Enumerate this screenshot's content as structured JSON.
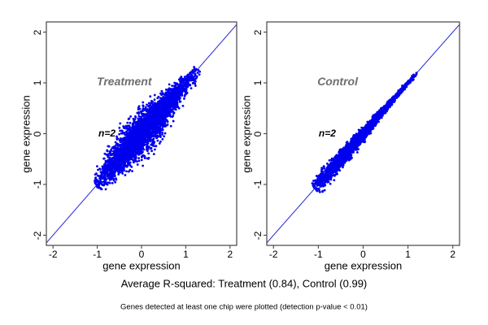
{
  "figure": {
    "background": "#FFFFFF",
    "captions": {
      "r_squared": "Average R-squared: Treatment (0.84), Control (0.99)",
      "note": "Genes detected at least one chip were plotted (detection p-value < 0.01)"
    }
  },
  "chart_data": [
    {
      "type": "scatter",
      "title": "Treatment",
      "title_color": "#6E6E6E",
      "annotation": "n=2",
      "xlabel": "gene expression",
      "ylabel": "gene expression",
      "xlim": [
        -2.15,
        2.15
      ],
      "ylim": [
        -2.2,
        2.2
      ],
      "x_ticks": [
        -2,
        -1,
        0,
        1,
        2
      ],
      "y_ticks": [
        -2,
        -1,
        0,
        1,
        2
      ],
      "grid": false,
      "point_color": "#0000EE",
      "identity_line": {
        "type": "y=x",
        "color": "#2222DD"
      },
      "r_squared": 0.84,
      "title_pos": [
        -0.39,
        1.03
      ],
      "annotation_pos": [
        -0.78,
        0.01
      ],
      "cloud": {
        "n_points": 3400,
        "along_mean": 0.05,
        "along_sd": 0.55,
        "along_min": -1.03,
        "along_max": 1.28,
        "perp_sd_base": 0.05,
        "perp_sd_amp": 0.105,
        "perp_sd_center": -0.05,
        "perp_sd_width": 0.8,
        "seed": 42
      }
    },
    {
      "type": "scatter",
      "title": "Control",
      "title_color": "#6E6E6E",
      "annotation": "n=2",
      "xlabel": "gene expression",
      "ylabel": "gene expression",
      "xlim": [
        -2.15,
        2.15
      ],
      "ylim": [
        -2.2,
        2.2
      ],
      "x_ticks": [
        -2,
        -1,
        0,
        1,
        2
      ],
      "y_ticks": [
        -2,
        -1,
        0,
        1,
        2
      ],
      "grid": false,
      "point_color": "#0000EE",
      "identity_line": {
        "type": "y=x",
        "color": "#2222DD"
      },
      "r_squared": 0.99,
      "title_pos": [
        -0.57,
        1.03
      ],
      "annotation_pos": [
        -0.8,
        0.01
      ],
      "cloud": {
        "n_points": 3000,
        "along_mean": -0.1,
        "along_sd": 0.52,
        "along_min": -1.08,
        "along_max": 1.2,
        "perp_sd_base": 0.013,
        "perp_sd_amp": 0.052,
        "perp_sd_center": -0.9,
        "perp_sd_width": 1.15,
        "seed": 1337
      }
    }
  ]
}
